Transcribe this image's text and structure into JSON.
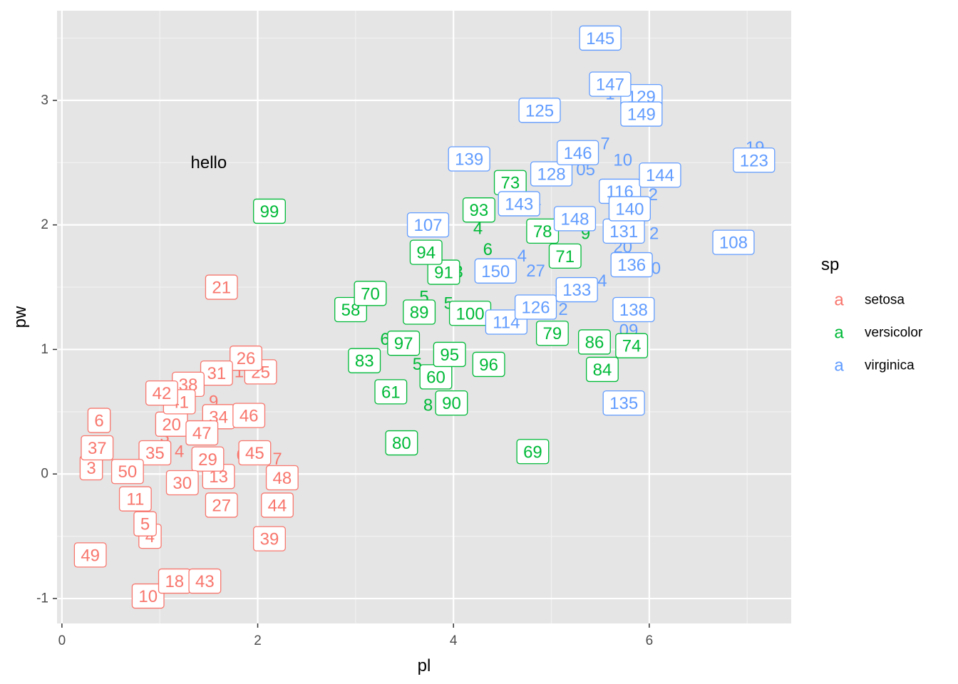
{
  "chart_data": {
    "type": "scatter",
    "xlabel": "pl",
    "ylabel": "pw",
    "xlim": [
      -0.05,
      7.45
    ],
    "ylim": [
      -1.2,
      3.72
    ],
    "x_ticks": [
      0,
      2,
      4,
      6
    ],
    "y_ticks": [
      -1,
      0,
      1,
      2,
      3
    ],
    "x_tick_labels": [
      "0",
      "2",
      "4",
      "6"
    ],
    "y_tick_labels": [
      "-1",
      "0",
      "1",
      "2",
      "3"
    ],
    "grid": true,
    "background": "#e5e5e5",
    "annotation": {
      "text": "hello",
      "x": 1.5,
      "y": 2.5
    },
    "legend": {
      "title": "sp",
      "position": "right",
      "key_glyph": "a",
      "entries": [
        {
          "label": "setosa",
          "color": "#f8766d"
        },
        {
          "label": "versicolor",
          "color": "#00ba38"
        },
        {
          "label": "virginica",
          "color": "#619cff"
        }
      ]
    },
    "series": [
      {
        "name": "setosa",
        "color": "#f8766d",
        "points": [
          {
            "label": "3",
            "x": 0.3,
            "y": 0.05
          },
          {
            "label": "4",
            "x": 0.9,
            "y": -0.5
          },
          {
            "label": "5",
            "x": 0.85,
            "y": -0.4
          },
          {
            "label": "6",
            "x": 0.38,
            "y": 0.43
          },
          {
            "label": "10",
            "x": 0.88,
            "y": -0.98
          },
          {
            "label": "11",
            "x": 0.75,
            "y": -0.2
          },
          {
            "label": "13",
            "x": 1.6,
            "y": -0.02
          },
          {
            "label": "18",
            "x": 1.15,
            "y": -0.86
          },
          {
            "label": "20",
            "x": 1.12,
            "y": 0.4
          },
          {
            "label": "21",
            "x": 1.63,
            "y": 1.5
          },
          {
            "label": "25",
            "x": 2.03,
            "y": 0.82
          },
          {
            "label": "26",
            "x": 1.88,
            "y": 0.93
          },
          {
            "label": "27",
            "x": 1.63,
            "y": -0.25
          },
          {
            "label": "29",
            "x": 1.49,
            "y": 0.12
          },
          {
            "label": "30",
            "x": 1.23,
            "y": -0.07
          },
          {
            "label": "31",
            "x": 1.58,
            "y": 0.81
          },
          {
            "label": "34",
            "x": 1.6,
            "y": 0.46
          },
          {
            "label": "35",
            "x": 0.95,
            "y": 0.17
          },
          {
            "label": "37",
            "x": 0.36,
            "y": 0.21
          },
          {
            "label": "38",
            "x": 1.29,
            "y": 0.72
          },
          {
            "label": "39",
            "x": 2.12,
            "y": -0.52
          },
          {
            "label": "41",
            "x": 1.2,
            "y": 0.58
          },
          {
            "label": "42",
            "x": 1.02,
            "y": 0.65
          },
          {
            "label": "43",
            "x": 1.46,
            "y": -0.86
          },
          {
            "label": "44",
            "x": 2.2,
            "y": -0.25
          },
          {
            "label": "45",
            "x": 1.97,
            "y": 0.17
          },
          {
            "label": "46",
            "x": 1.91,
            "y": 0.47
          },
          {
            "label": "47",
            "x": 1.43,
            "y": 0.33
          },
          {
            "label": "48",
            "x": 2.25,
            "y": -0.03
          },
          {
            "label": "49",
            "x": 0.29,
            "y": -0.65
          },
          {
            "label": "50",
            "x": 0.67,
            "y": 0.02
          }
        ]
      },
      {
        "name": "versicolor",
        "color": "#00ba38",
        "points": [
          {
            "label": "58",
            "x": 2.95,
            "y": 1.32
          },
          {
            "label": "60",
            "x": 3.82,
            "y": 0.78
          },
          {
            "label": "61",
            "x": 3.36,
            "y": 0.66
          },
          {
            "label": "69",
            "x": 4.81,
            "y": 0.18
          },
          {
            "label": "70",
            "x": 3.15,
            "y": 1.45
          },
          {
            "label": "71",
            "x": 5.14,
            "y": 1.75
          },
          {
            "label": "73",
            "x": 4.58,
            "y": 2.34
          },
          {
            "label": "74",
            "x": 5.82,
            "y": 1.03
          },
          {
            "label": "78",
            "x": 4.91,
            "y": 1.95
          },
          {
            "label": "79",
            "x": 5.01,
            "y": 1.13
          },
          {
            "label": "80",
            "x": 3.47,
            "y": 0.25
          },
          {
            "label": "83",
            "x": 3.09,
            "y": 0.91
          },
          {
            "label": "84",
            "x": 5.52,
            "y": 0.84
          },
          {
            "label": "86",
            "x": 5.44,
            "y": 1.06
          },
          {
            "label": "89",
            "x": 3.65,
            "y": 1.3
          },
          {
            "label": "90",
            "x": 3.98,
            "y": 0.57
          },
          {
            "label": "91",
            "x": 3.9,
            "y": 1.62
          },
          {
            "label": "93",
            "x": 4.26,
            "y": 2.12
          },
          {
            "label": "94",
            "x": 3.72,
            "y": 1.78
          },
          {
            "label": "95",
            "x": 3.96,
            "y": 0.96
          },
          {
            "label": "96",
            "x": 4.36,
            "y": 0.88
          },
          {
            "label": "97",
            "x": 3.49,
            "y": 1.05
          },
          {
            "label": "99",
            "x": 2.12,
            "y": 2.11
          },
          {
            "label": "100",
            "x": 4.17,
            "y": 1.29
          }
        ]
      },
      {
        "name": "virginica",
        "color": "#619cff",
        "points": [
          {
            "label": "107",
            "x": 3.74,
            "y": 2.0
          },
          {
            "label": "108",
            "x": 6.86,
            "y": 1.86
          },
          {
            "label": "114",
            "x": 4.54,
            "y": 1.22
          },
          {
            "label": "116",
            "x": 5.7,
            "y": 2.27
          },
          {
            "label": "123",
            "x": 7.07,
            "y": 2.52
          },
          {
            "label": "125",
            "x": 4.88,
            "y": 2.92
          },
          {
            "label": "126",
            "x": 4.84,
            "y": 1.34
          },
          {
            "label": "128",
            "x": 5.0,
            "y": 2.41
          },
          {
            "label": "129",
            "x": 5.92,
            "y": 3.03
          },
          {
            "label": "131",
            "x": 5.74,
            "y": 1.95
          },
          {
            "label": "133",
            "x": 5.26,
            "y": 1.48
          },
          {
            "label": "135",
            "x": 5.74,
            "y": 0.57
          },
          {
            "label": "136",
            "x": 5.82,
            "y": 1.68
          },
          {
            "label": "138",
            "x": 5.84,
            "y": 1.32
          },
          {
            "label": "139",
            "x": 4.16,
            "y": 2.53
          },
          {
            "label": "140",
            "x": 5.8,
            "y": 2.13
          },
          {
            "label": "143",
            "x": 4.67,
            "y": 2.17
          },
          {
            "label": "144",
            "x": 6.11,
            "y": 2.4
          },
          {
            "label": "145",
            "x": 5.5,
            "y": 3.5
          },
          {
            "label": "146",
            "x": 5.27,
            "y": 2.58
          },
          {
            "label": "147",
            "x": 5.6,
            "y": 3.13
          },
          {
            "label": "148",
            "x": 5.24,
            "y": 2.05
          },
          {
            "label": "149",
            "x": 5.92,
            "y": 2.89
          },
          {
            "label": "150",
            "x": 4.43,
            "y": 1.63
          }
        ]
      }
    ],
    "partial_labels": [
      {
        "text": "3",
        "x": 1.05,
        "y": 0.3,
        "color": "#f8766d"
      },
      {
        "text": "4",
        "x": 1.2,
        "y": 0.18,
        "color": "#f8766d"
      },
      {
        "text": "5",
        "x": 2.02,
        "y": 0.45,
        "color": "#f8766d"
      },
      {
        "text": "6",
        "x": 1.83,
        "y": 0.15,
        "color": "#f8766d"
      },
      {
        "text": "7",
        "x": 2.2,
        "y": 0.12,
        "color": "#f8766d"
      },
      {
        "text": "9",
        "x": 1.55,
        "y": 0.58,
        "color": "#f8766d"
      },
      {
        "text": "1",
        "x": 1.81,
        "y": 0.82,
        "color": "#f8766d"
      },
      {
        "text": "5",
        "x": 3.63,
        "y": 0.88,
        "color": "#00ba38"
      },
      {
        "text": "6",
        "x": 3.3,
        "y": 1.08,
        "color": "#00ba38"
      },
      {
        "text": "8",
        "x": 3.74,
        "y": 0.55,
        "color": "#00ba38"
      },
      {
        "text": "6",
        "x": 4.35,
        "y": 1.8,
        "color": "#00ba38"
      },
      {
        "text": "3",
        "x": 4.05,
        "y": 1.62,
        "color": "#00ba38"
      },
      {
        "text": "5",
        "x": 3.7,
        "y": 1.42,
        "color": "#00ba38"
      },
      {
        "text": "5",
        "x": 3.95,
        "y": 1.37,
        "color": "#00ba38"
      },
      {
        "text": "9",
        "x": 5.35,
        "y": 1.93,
        "color": "#00ba38"
      },
      {
        "text": "4",
        "x": 4.25,
        "y": 1.97,
        "color": "#00ba38"
      },
      {
        "text": "4",
        "x": 4.7,
        "y": 1.75,
        "color": "#619cff"
      },
      {
        "text": "27",
        "x": 4.84,
        "y": 1.63,
        "color": "#619cff"
      },
      {
        "text": "2",
        "x": 5.12,
        "y": 1.32,
        "color": "#619cff"
      },
      {
        "text": "4",
        "x": 5.52,
        "y": 1.55,
        "color": "#619cff"
      },
      {
        "text": "05",
        "x": 5.35,
        "y": 2.44,
        "color": "#619cff"
      },
      {
        "text": "7",
        "x": 5.55,
        "y": 2.65,
        "color": "#619cff"
      },
      {
        "text": "10",
        "x": 5.73,
        "y": 2.52,
        "color": "#619cff"
      },
      {
        "text": "2",
        "x": 6.04,
        "y": 2.24,
        "color": "#619cff"
      },
      {
        "text": "2",
        "x": 6.05,
        "y": 1.93,
        "color": "#619cff"
      },
      {
        "text": "20",
        "x": 5.73,
        "y": 1.82,
        "color": "#619cff"
      },
      {
        "text": "0",
        "x": 6.07,
        "y": 1.65,
        "color": "#619cff"
      },
      {
        "text": "09",
        "x": 5.79,
        "y": 1.15,
        "color": "#619cff"
      },
      {
        "text": "1",
        "x": 5.6,
        "y": 3.05,
        "color": "#619cff"
      },
      {
        "text": "1",
        "x": 4.85,
        "y": 2.2,
        "color": "#619cff"
      },
      {
        "text": "19",
        "x": 7.08,
        "y": 2.62,
        "color": "#619cff"
      }
    ]
  }
}
